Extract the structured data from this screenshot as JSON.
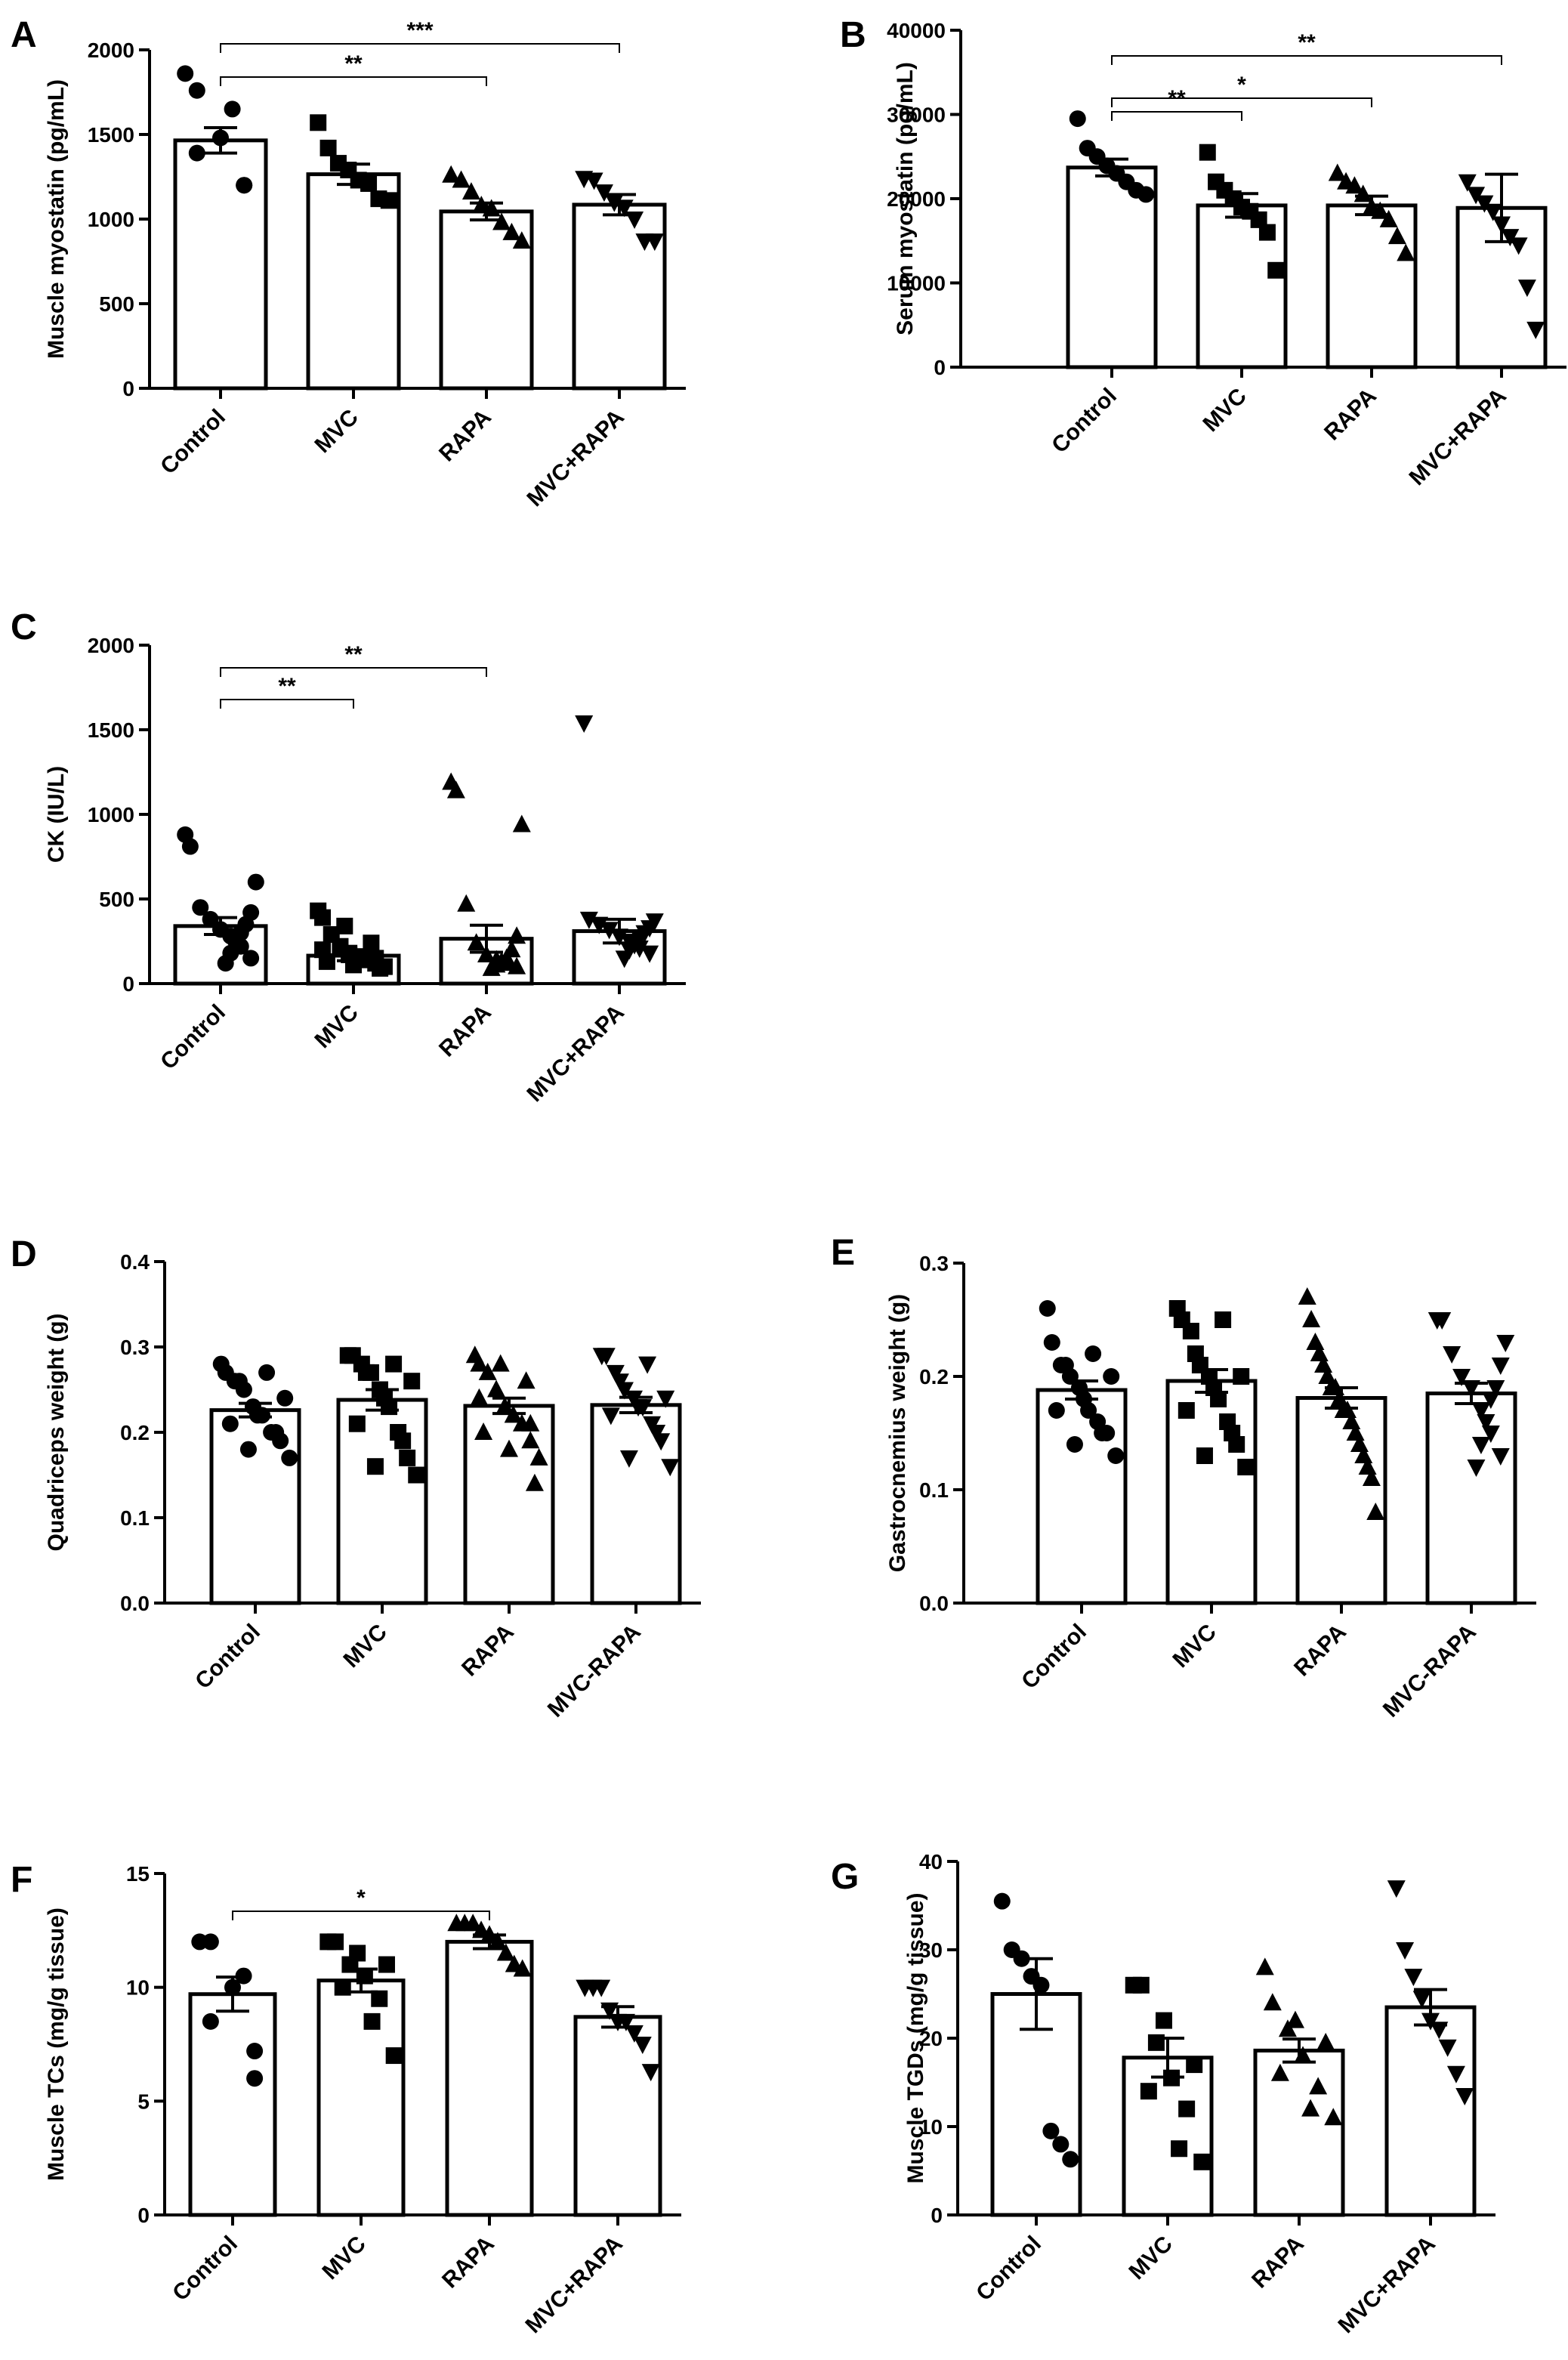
{
  "figure": {
    "panels": [
      "A",
      "B",
      "C",
      "D",
      "E",
      "F",
      "G"
    ]
  },
  "chart_data": [
    {
      "panel": "A",
      "type": "bar",
      "ylabel": "Muscle myostatin (pg/mL)",
      "ylim": [
        0,
        2000
      ],
      "yticks": [
        0,
        500,
        1000,
        1500,
        2000
      ],
      "categories": [
        "Control",
        "MVC",
        "RAPA",
        "MVC+RAPA"
      ],
      "markers": [
        "circle",
        "square",
        "triangle-up",
        "triangle-down"
      ],
      "means": [
        1465,
        1265,
        1045,
        1085
      ],
      "sem": [
        75,
        60,
        50,
        60
      ],
      "points": [
        [
          1860,
          1760,
          1650,
          1480,
          1390,
          1200,
          1200
        ],
        [
          1570,
          1420,
          1330,
          1290,
          1230,
          1210,
          1120,
          1110
        ],
        [
          1260,
          1230,
          1160,
          1080,
          1060,
          980,
          920,
          870
        ],
        [
          1240,
          1230,
          1160,
          1100,
          1070,
          1000,
          870,
          870
        ]
      ],
      "significance": [
        {
          "from": 0,
          "to": 2,
          "label": "**"
        },
        {
          "from": 0,
          "to": 3,
          "label": "***"
        }
      ]
    },
    {
      "panel": "B",
      "type": "bar",
      "ylabel": "Serum myostatin (pg/mL)",
      "ylim": [
        0,
        40000
      ],
      "yticks": [
        0,
        10000,
        20000,
        30000,
        40000
      ],
      "categories": [
        "Control",
        "MVC",
        "RAPA",
        "MVC+RAPA"
      ],
      "markers": [
        "circle",
        "square",
        "triangle-up",
        "triangle-down"
      ],
      "means": [
        23700,
        19200,
        19200,
        18900
      ],
      "sem": [
        1000,
        1400,
        1100,
        4000
      ],
      "points": [
        [
          29500,
          26000,
          25000,
          23900,
          23000,
          22000,
          21000,
          20500
        ],
        [
          25500,
          22000,
          21000,
          20000,
          19000,
          18500,
          17500,
          16000,
          11500
        ],
        [
          23000,
          22000,
          21500,
          20500,
          19000,
          18500,
          17500,
          15500,
          13500
        ],
        [
          22000,
          20500,
          19500,
          18500,
          17000,
          15500,
          14500,
          9500,
          4500
        ]
      ],
      "significance": [
        {
          "from": 0,
          "to": 1,
          "label": "**"
        },
        {
          "from": 0,
          "to": 2,
          "label": "*"
        },
        {
          "from": 0,
          "to": 3,
          "label": "**"
        }
      ]
    },
    {
      "panel": "C",
      "type": "bar",
      "ylabel": "CK (IU/L)",
      "ylim": [
        0,
        2000
      ],
      "yticks": [
        0,
        500,
        1000,
        1500,
        2000
      ],
      "categories": [
        "Control",
        "MVC",
        "RAPA",
        "MVC+RAPA"
      ],
      "markers": [
        "circle",
        "square",
        "triangle-up",
        "triangle-down"
      ],
      "means": [
        340,
        165,
        265,
        310
      ],
      "sem": [
        50,
        30,
        80,
        70
      ],
      "points": [
        [
          880,
          810,
          600,
          450,
          420,
          380,
          350,
          320,
          300,
          280,
          250,
          220,
          180,
          150,
          120
        ],
        [
          430,
          390,
          340,
          290,
          240,
          220,
          200,
          180,
          170,
          160,
          150,
          140,
          130,
          120,
          110,
          100,
          90
        ],
        [
          1190,
          1140,
          940,
          470,
          280,
          240,
          200,
          170,
          150,
          140,
          130,
          120,
          110,
          100,
          90
        ],
        [
          1540,
          380,
          370,
          350,
          330,
          320,
          300,
          280,
          270,
          250,
          230,
          210,
          200,
          180,
          150
        ]
      ],
      "significance": [
        {
          "from": 0,
          "to": 1,
          "label": "**"
        },
        {
          "from": 0,
          "to": 2,
          "label": "**"
        }
      ]
    },
    {
      "panel": "D",
      "type": "bar",
      "ylabel": "Quadriceps weight (g)",
      "ylim": [
        0,
        0.4
      ],
      "yticks": [
        "0.0",
        "0.1",
        "0.2",
        "0.3",
        "0.4"
      ],
      "categories": [
        "Control",
        "MVC",
        "RAPA",
        "MVC-RAPA"
      ],
      "markers": [
        "circle",
        "square",
        "triangle-up",
        "triangle-down"
      ],
      "means": [
        0.226,
        0.238,
        0.231,
        0.232
      ],
      "sem": [
        0.008,
        0.012,
        0.009,
        0.009
      ],
      "points": [
        [
          0.28,
          0.27,
          0.27,
          0.26,
          0.26,
          0.25,
          0.24,
          0.23,
          0.22,
          0.22,
          0.21,
          0.2,
          0.2,
          0.19,
          0.18,
          0.17
        ],
        [
          0.29,
          0.29,
          0.28,
          0.28,
          0.27,
          0.27,
          0.26,
          0.25,
          0.24,
          0.23,
          0.21,
          0.2,
          0.19,
          0.17,
          0.16,
          0.15
        ],
        [
          0.29,
          0.28,
          0.28,
          0.27,
          0.26,
          0.25,
          0.24,
          0.23,
          0.23,
          0.22,
          0.21,
          0.21,
          0.2,
          0.19,
          0.18,
          0.17,
          0.14
        ],
        [
          0.29,
          0.29,
          0.28,
          0.27,
          0.26,
          0.25,
          0.24,
          0.24,
          0.23,
          0.23,
          0.22,
          0.21,
          0.2,
          0.19,
          0.17,
          0.16
        ]
      ],
      "significance": []
    },
    {
      "panel": "E",
      "type": "bar",
      "ylabel": "Gastrocnemius weight (g)",
      "ylim": [
        0,
        0.3
      ],
      "yticks": [
        "0.0",
        "0.1",
        "0.2",
        "0.3"
      ],
      "categories": [
        "Control",
        "MVC",
        "RAPA",
        "MVC-RAPA"
      ],
      "markers": [
        "circle",
        "square",
        "triangle-up",
        "triangle-down"
      ],
      "means": [
        0.188,
        0.196,
        0.181,
        0.185
      ],
      "sem": [
        0.008,
        0.01,
        0.009,
        0.009
      ],
      "points": [
        [
          0.26,
          0.23,
          0.22,
          0.21,
          0.21,
          0.2,
          0.2,
          0.19,
          0.18,
          0.17,
          0.17,
          0.16,
          0.15,
          0.15,
          0.14,
          0.13
        ],
        [
          0.26,
          0.25,
          0.25,
          0.24,
          0.22,
          0.21,
          0.2,
          0.2,
          0.19,
          0.18,
          0.17,
          0.16,
          0.15,
          0.14,
          0.13,
          0.12
        ],
        [
          0.27,
          0.25,
          0.23,
          0.22,
          0.21,
          0.2,
          0.19,
          0.19,
          0.18,
          0.17,
          0.17,
          0.16,
          0.15,
          0.14,
          0.13,
          0.12,
          0.11,
          0.08
        ],
        [
          0.25,
          0.25,
          0.23,
          0.22,
          0.21,
          0.2,
          0.19,
          0.19,
          0.18,
          0.17,
          0.16,
          0.15,
          0.14,
          0.13,
          0.12
        ]
      ],
      "significance": []
    },
    {
      "panel": "F",
      "type": "bar",
      "ylabel": "Muscle TCs (mg/g tissue)",
      "ylim": [
        0,
        15
      ],
      "yticks": [
        0,
        5,
        10,
        15
      ],
      "categories": [
        "Control",
        "MVC",
        "RAPA",
        "MVC+RAPA"
      ],
      "markers": [
        "circle",
        "square",
        "triangle-up",
        "triangle-down"
      ],
      "means": [
        9.7,
        10.3,
        12.0,
        8.7
      ],
      "sem": [
        0.75,
        0.5,
        0.3,
        0.45
      ],
      "points": [
        [
          12.0,
          12.0,
          10.5,
          10.0,
          8.5,
          7.2,
          6.0
        ],
        [
          12.0,
          12.0,
          11.5,
          11.0,
          11.0,
          10.5,
          10.0,
          9.5,
          8.5,
          7.0
        ],
        [
          12.8,
          12.8,
          12.8,
          12.5,
          12.3,
          12.0,
          11.5,
          11.0,
          10.8
        ],
        [
          10.0,
          10.0,
          10.0,
          9.0,
          8.5,
          8.5,
          8.0,
          7.5,
          6.3
        ]
      ],
      "significance": [
        {
          "from": 0,
          "to": 2,
          "label": "*"
        }
      ]
    },
    {
      "panel": "G",
      "type": "bar",
      "ylabel": "Muscle TGDs (mg/g tissue)",
      "ylim": [
        0,
        40
      ],
      "yticks": [
        0,
        10,
        20,
        30,
        40
      ],
      "categories": [
        "Control",
        "MVC",
        "RAPA",
        "MVC+RAPA"
      ],
      "markers": [
        "circle",
        "square",
        "triangle-up",
        "triangle-down"
      ],
      "means": [
        25.0,
        17.8,
        18.6,
        23.5
      ],
      "sem": [
        4.0,
        2.2,
        1.3,
        2.0
      ],
      "points": [
        [
          35.5,
          30.0,
          29.0,
          27.0,
          26.0,
          9.5,
          8.0,
          6.3
        ],
        [
          26.0,
          26.0,
          22.0,
          19.5,
          17.0,
          15.5,
          14.0,
          12.0,
          7.5,
          6.0
        ],
        [
          28.0,
          24.0,
          22.0,
          21.0,
          19.5,
          18.0,
          16.0,
          14.5,
          12.0,
          11.0
        ],
        [
          37.0,
          30.0,
          27.0,
          24.5,
          22.0,
          21.0,
          19.0,
          16.0,
          13.5
        ]
      ],
      "significance": []
    }
  ]
}
